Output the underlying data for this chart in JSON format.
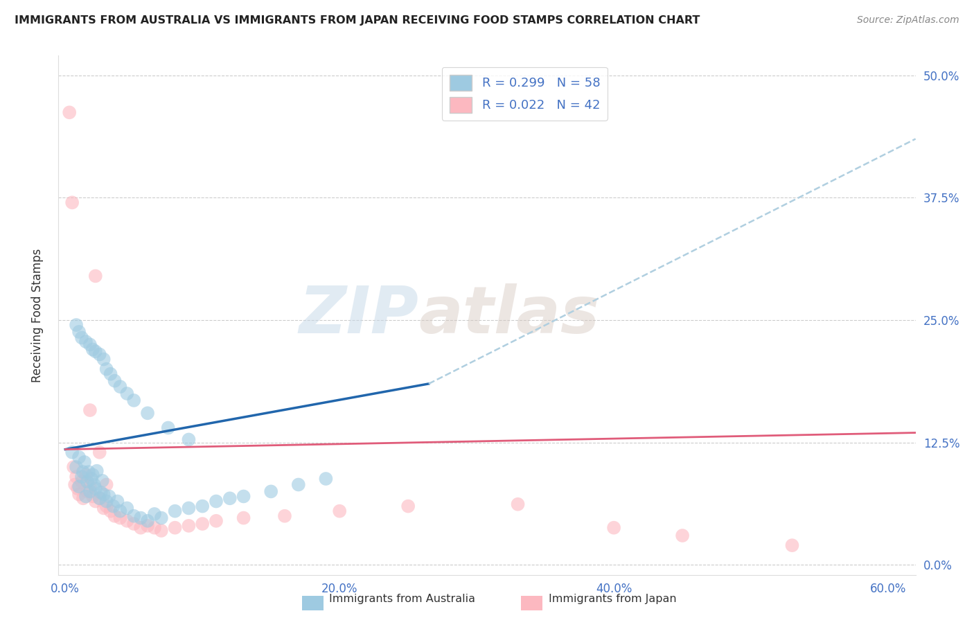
{
  "title": "IMMIGRANTS FROM AUSTRALIA VS IMMIGRANTS FROM JAPAN RECEIVING FOOD STAMPS CORRELATION CHART",
  "source": "Source: ZipAtlas.com",
  "ylabel": "Receiving Food Stamps",
  "ytick_labels": [
    "0.0%",
    "12.5%",
    "25.0%",
    "37.5%",
    "50.0%"
  ],
  "ytick_values": [
    0.0,
    0.125,
    0.25,
    0.375,
    0.5
  ],
  "xtick_values": [
    0.0,
    0.2,
    0.4,
    0.6
  ],
  "xlim": [
    -0.005,
    0.62
  ],
  "ylim": [
    -0.01,
    0.52
  ],
  "australia_R": 0.299,
  "australia_N": 58,
  "japan_R": 0.022,
  "japan_N": 42,
  "australia_color": "#9ecae1",
  "japan_color": "#fcb8c0",
  "australia_line_color": "#2166ac",
  "japan_line_color": "#e05c7a",
  "trend_dash_color": "#b0cfe0",
  "watermark_zip": "ZIP",
  "watermark_atlas": "atlas",
  "legend_label_australia": "Immigrants from Australia",
  "legend_label_japan": "Immigrants from Japan",
  "aus_x": [
    0.005,
    0.008,
    0.01,
    0.01,
    0.012,
    0.013,
    0.014,
    0.015,
    0.016,
    0.017,
    0.018,
    0.019,
    0.02,
    0.021,
    0.022,
    0.023,
    0.025,
    0.026,
    0.027,
    0.028,
    0.03,
    0.032,
    0.035,
    0.038,
    0.04,
    0.045,
    0.05,
    0.055,
    0.06,
    0.065,
    0.07,
    0.08,
    0.09,
    0.1,
    0.11,
    0.12,
    0.13,
    0.15,
    0.17,
    0.19,
    0.008,
    0.01,
    0.012,
    0.015,
    0.018,
    0.02,
    0.022,
    0.025,
    0.028,
    0.03,
    0.033,
    0.036,
    0.04,
    0.045,
    0.05,
    0.06,
    0.075,
    0.09
  ],
  "aus_y": [
    0.115,
    0.1,
    0.08,
    0.11,
    0.09,
    0.095,
    0.105,
    0.07,
    0.085,
    0.095,
    0.075,
    0.088,
    0.092,
    0.082,
    0.078,
    0.096,
    0.068,
    0.074,
    0.086,
    0.072,
    0.065,
    0.07,
    0.06,
    0.065,
    0.055,
    0.058,
    0.05,
    0.048,
    0.045,
    0.052,
    0.048,
    0.055,
    0.058,
    0.06,
    0.065,
    0.068,
    0.07,
    0.075,
    0.082,
    0.088,
    0.245,
    0.238,
    0.232,
    0.228,
    0.225,
    0.22,
    0.218,
    0.215,
    0.21,
    0.2,
    0.195,
    0.188,
    0.182,
    0.175,
    0.168,
    0.155,
    0.14,
    0.128
  ],
  "jpn_x": [
    0.003,
    0.005,
    0.006,
    0.007,
    0.008,
    0.009,
    0.01,
    0.012,
    0.013,
    0.015,
    0.016,
    0.018,
    0.02,
    0.022,
    0.025,
    0.028,
    0.03,
    0.033,
    0.036,
    0.04,
    0.045,
    0.05,
    0.055,
    0.06,
    0.065,
    0.07,
    0.08,
    0.09,
    0.1,
    0.11,
    0.13,
    0.16,
    0.2,
    0.25,
    0.33,
    0.4,
    0.45,
    0.53,
    0.022,
    0.018,
    0.025,
    0.03
  ],
  "jpn_y": [
    0.462,
    0.37,
    0.1,
    0.082,
    0.09,
    0.078,
    0.072,
    0.085,
    0.068,
    0.092,
    0.075,
    0.08,
    0.07,
    0.065,
    0.068,
    0.058,
    0.06,
    0.055,
    0.05,
    0.048,
    0.045,
    0.042,
    0.038,
    0.04,
    0.038,
    0.035,
    0.038,
    0.04,
    0.042,
    0.045,
    0.048,
    0.05,
    0.055,
    0.06,
    0.062,
    0.038,
    0.03,
    0.02,
    0.295,
    0.158,
    0.115,
    0.082
  ],
  "aus_trend_x0": 0.0,
  "aus_trend_x_solid_end": 0.265,
  "aus_trend_x1": 0.62,
  "aus_trend_y0": 0.118,
  "aus_trend_y_solid_end": 0.185,
  "aus_trend_y1": 0.435,
  "jpn_trend_x0": 0.0,
  "jpn_trend_x1": 0.62,
  "jpn_trend_y0": 0.118,
  "jpn_trend_y1": 0.135
}
